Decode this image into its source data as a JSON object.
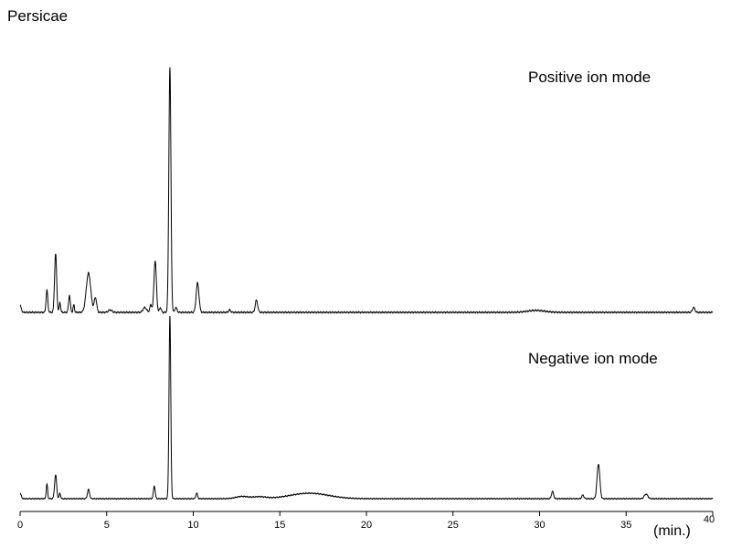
{
  "chart_data": {
    "type": "line",
    "title": "Persicae",
    "xlabel": "(min.)",
    "xlim": [
      0,
      40
    ],
    "x_ticks": [
      0,
      5,
      10,
      15,
      20,
      25,
      30,
      35,
      40
    ],
    "x_tick_labels": [
      "0",
      "5",
      "10",
      "15",
      "20",
      "25",
      "30",
      "35",
      "40"
    ],
    "grid": false,
    "legend": "none",
    "line_color": "#000000",
    "panels": [
      {
        "label": "Positive ion mode",
        "baseline_offset": 0.02,
        "peaks": [
          {
            "x": 1.55,
            "height": 0.09,
            "width": 0.05
          },
          {
            "x": 2.05,
            "height": 0.24,
            "width": 0.06
          },
          {
            "x": 2.3,
            "height": 0.04,
            "width": 0.04
          },
          {
            "x": 2.85,
            "height": 0.07,
            "width": 0.05
          },
          {
            "x": 3.1,
            "height": 0.03,
            "width": 0.04
          },
          {
            "x": 3.95,
            "height": 0.16,
            "width": 0.13
          },
          {
            "x": 4.35,
            "height": 0.06,
            "width": 0.07
          },
          {
            "x": 5.2,
            "height": 0.01,
            "width": 0.1
          },
          {
            "x": 7.2,
            "height": 0.02,
            "width": 0.1
          },
          {
            "x": 7.55,
            "height": 0.03,
            "width": 0.06
          },
          {
            "x": 7.8,
            "height": 0.21,
            "width": 0.07
          },
          {
            "x": 8.1,
            "height": 0.02,
            "width": 0.05
          },
          {
            "x": 8.65,
            "height": 1.0,
            "width": 0.06
          },
          {
            "x": 9.0,
            "height": 0.02,
            "width": 0.06
          },
          {
            "x": 10.25,
            "height": 0.12,
            "width": 0.08
          },
          {
            "x": 12.1,
            "height": 0.01,
            "width": 0.06
          },
          {
            "x": 13.65,
            "height": 0.05,
            "width": 0.07
          },
          {
            "x": 29.8,
            "height": 0.008,
            "width": 0.5
          },
          {
            "x": 38.9,
            "height": 0.02,
            "width": 0.07
          }
        ]
      },
      {
        "label": "Negative ion mode",
        "baseline_offset": 0.02,
        "peaks": [
          {
            "x": 1.55,
            "height": 0.08,
            "width": 0.04
          },
          {
            "x": 2.05,
            "height": 0.13,
            "width": 0.06
          },
          {
            "x": 2.3,
            "height": 0.03,
            "width": 0.04
          },
          {
            "x": 3.95,
            "height": 0.05,
            "width": 0.06
          },
          {
            "x": 7.75,
            "height": 0.07,
            "width": 0.05
          },
          {
            "x": 8.65,
            "height": 1.0,
            "width": 0.05
          },
          {
            "x": 10.2,
            "height": 0.03,
            "width": 0.05
          },
          {
            "x": 12.8,
            "height": 0.012,
            "width": 0.35
          },
          {
            "x": 13.8,
            "height": 0.01,
            "width": 0.4
          },
          {
            "x": 16.7,
            "height": 0.03,
            "width": 1.1
          },
          {
            "x": 30.75,
            "height": 0.04,
            "width": 0.06
          },
          {
            "x": 32.5,
            "height": 0.02,
            "width": 0.06
          },
          {
            "x": 33.4,
            "height": 0.19,
            "width": 0.08
          },
          {
            "x": 36.15,
            "height": 0.025,
            "width": 0.1
          }
        ]
      }
    ]
  }
}
